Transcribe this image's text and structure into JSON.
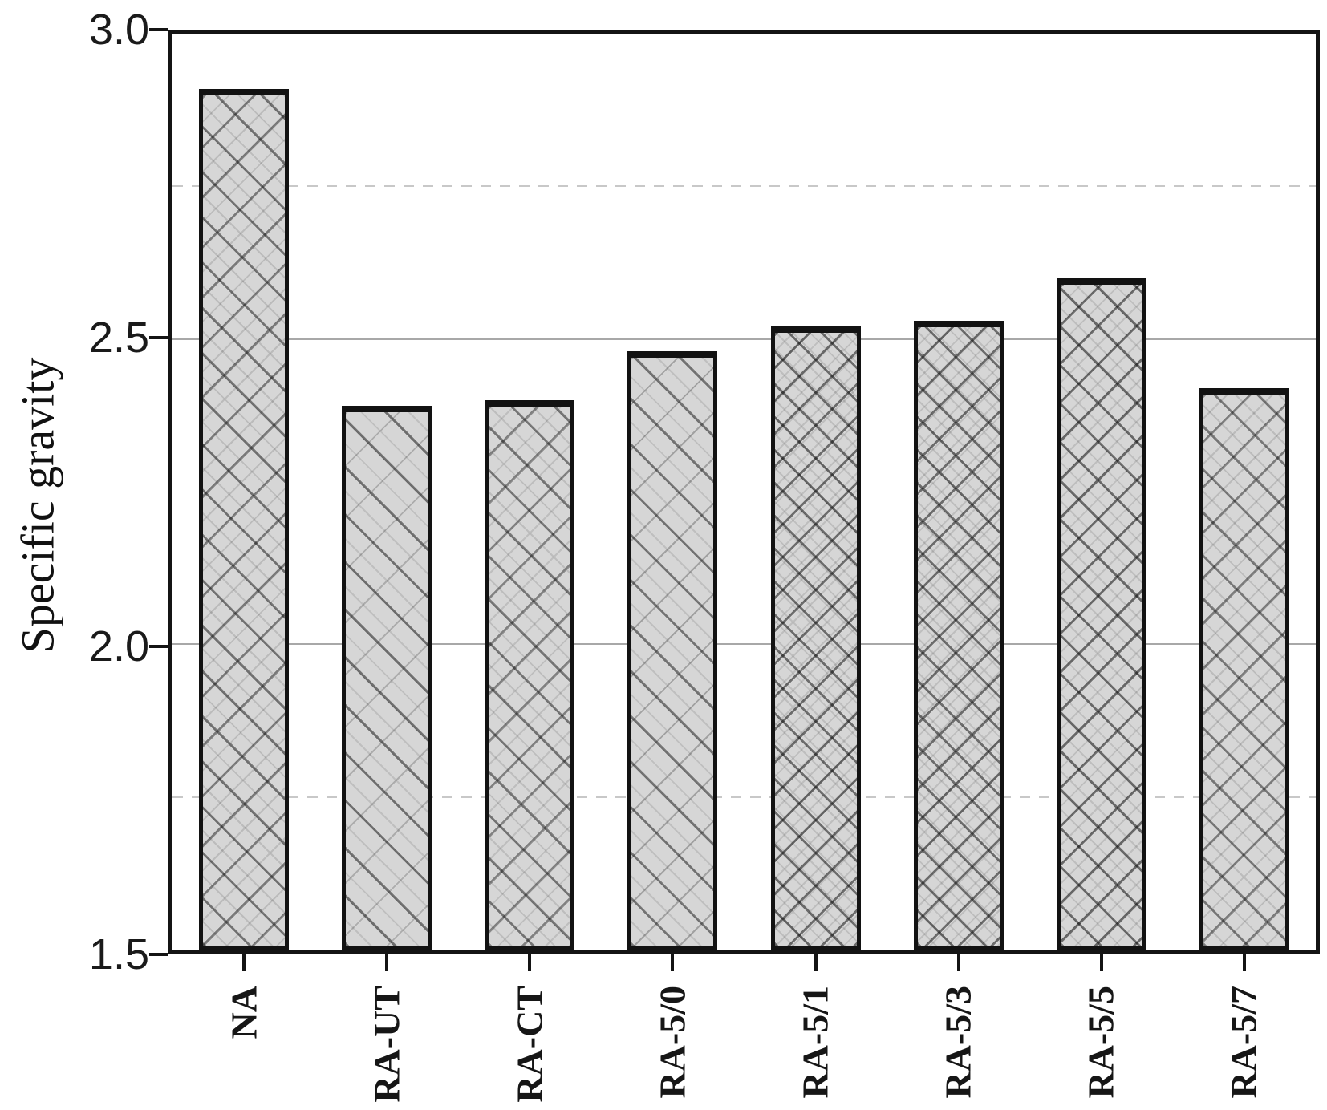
{
  "chart_data": {
    "type": "bar",
    "categories": [
      "NA",
      "RA-UT",
      "RA-CT",
      "RA-5/0",
      "RA-5/1",
      "RA-5/3",
      "RA-5/5",
      "RA-5/7"
    ],
    "values": [
      2.91,
      2.39,
      2.4,
      2.48,
      2.52,
      2.53,
      2.6,
      2.42
    ],
    "title": "",
    "xlabel": "",
    "ylabel": "Specific gravity",
    "ylim": [
      1.5,
      3.0
    ],
    "yticks": [
      {
        "value": 3.0,
        "label": "3.0"
      },
      {
        "value": 2.5,
        "label": "2.5"
      },
      {
        "value": 2.0,
        "label": "2.0"
      },
      {
        "value": 1.5,
        "label": "1.5"
      }
    ],
    "gridlines": {
      "solid": [
        2.5,
        2.0
      ],
      "dashed": [
        2.75,
        1.75
      ]
    },
    "legend_position": "none",
    "bar_pattern": "crosshatch",
    "colors": {
      "bar_fill": "#d6d6d6",
      "bar_border": "#121212",
      "hatch_line": "#2a2a2a",
      "grid_solid": "#a8a8a8",
      "grid_dashed": "#c8c8c8",
      "axis": "#141414",
      "text": "#1a1a1a",
      "background": "#ffffff"
    }
  }
}
